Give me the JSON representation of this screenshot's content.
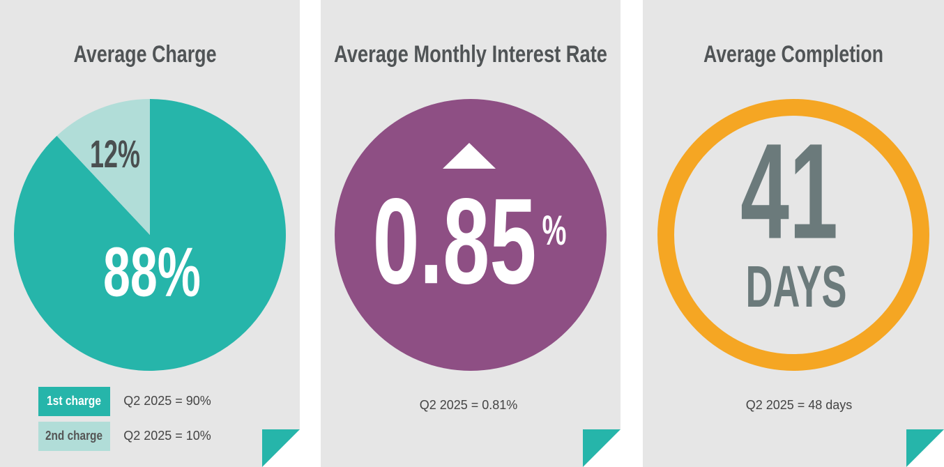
{
  "panels": [
    {
      "title": "Average Charge",
      "pie": {
        "values": [
          88,
          12
        ],
        "value_labels": [
          "88%",
          "12%"
        ],
        "colors": [
          "#26b5aa",
          "#b1ddd8"
        ]
      },
      "legend": [
        {
          "label": "1st charge",
          "note": "Q2 2025 = 90%"
        },
        {
          "label": "2nd charge",
          "note": "Q2 2025 = 10%"
        }
      ]
    },
    {
      "title": "Average Monthly Interest Rate",
      "value": "0.85",
      "unit": "%",
      "note": "Q2 2025 = 0.81%"
    },
    {
      "title": "Average Completion",
      "value": "41",
      "unit": "DAYS",
      "note": "Q2 2025 = 48 days"
    }
  ]
}
